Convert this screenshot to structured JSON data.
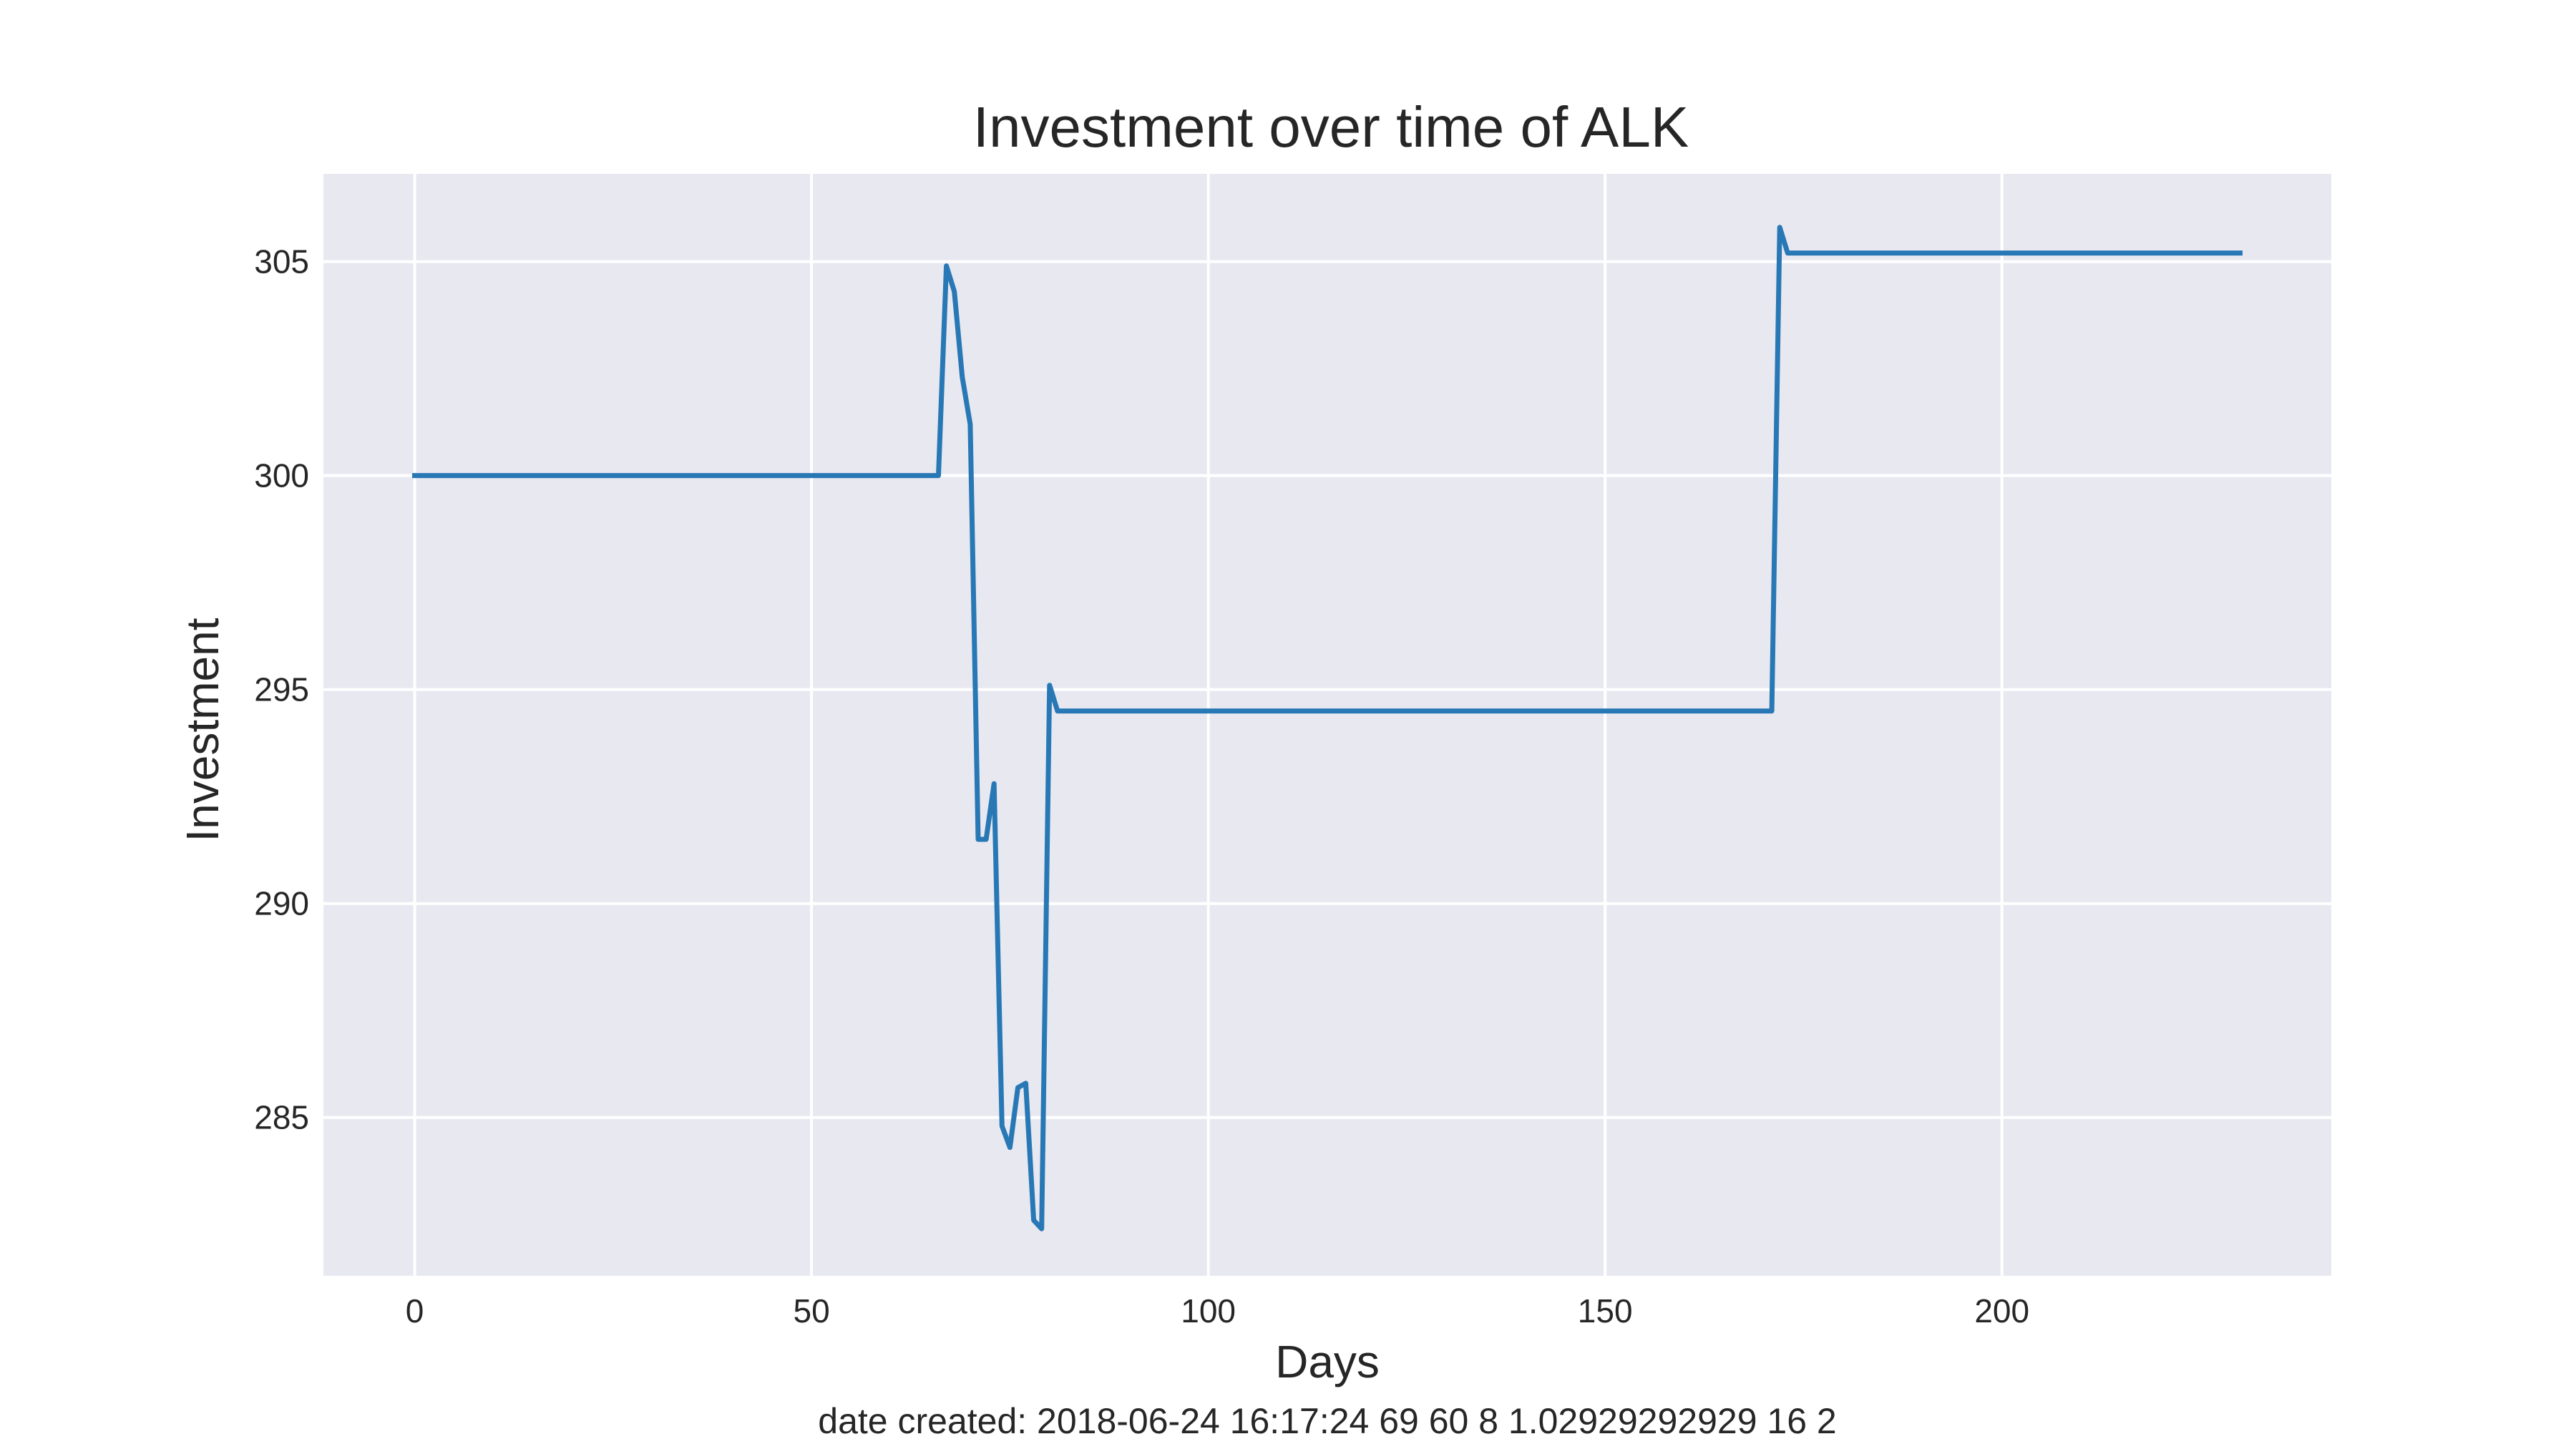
{
  "chart_data": {
    "type": "line",
    "title": "Investment over time of ALK",
    "xlabel": "Days",
    "ylabel": "Investment",
    "footer": "date created: 2018-06-24 16:17:24 69 60 8 1.02929292929 16 2",
    "xlim": [
      -11.5,
      241.5
    ],
    "ylim": [
      281.3,
      307.05
    ],
    "x_ticks": [
      0,
      50,
      100,
      150,
      200
    ],
    "y_ticks": [
      285,
      290,
      295,
      300,
      305
    ],
    "grid": true,
    "legend": "none",
    "colors": {
      "line": "#2878b5",
      "plot_background": "#e8e8f1",
      "grid": "#ffffff",
      "text": "#262626"
    },
    "series": [
      {
        "x": [
          0,
          66,
          67,
          68,
          69,
          70,
          71,
          72,
          73,
          74,
          75,
          76,
          77,
          78,
          79,
          80,
          81,
          170,
          171,
          172,
          173,
          230
        ],
        "y": [
          300.0,
          300.0,
          304.9,
          304.3,
          302.3,
          301.2,
          291.5,
          291.5,
          292.8,
          284.8,
          284.3,
          285.7,
          285.8,
          282.6,
          282.4,
          295.1,
          294.5,
          294.5,
          294.5,
          305.8,
          305.2,
          305.2
        ]
      }
    ]
  }
}
